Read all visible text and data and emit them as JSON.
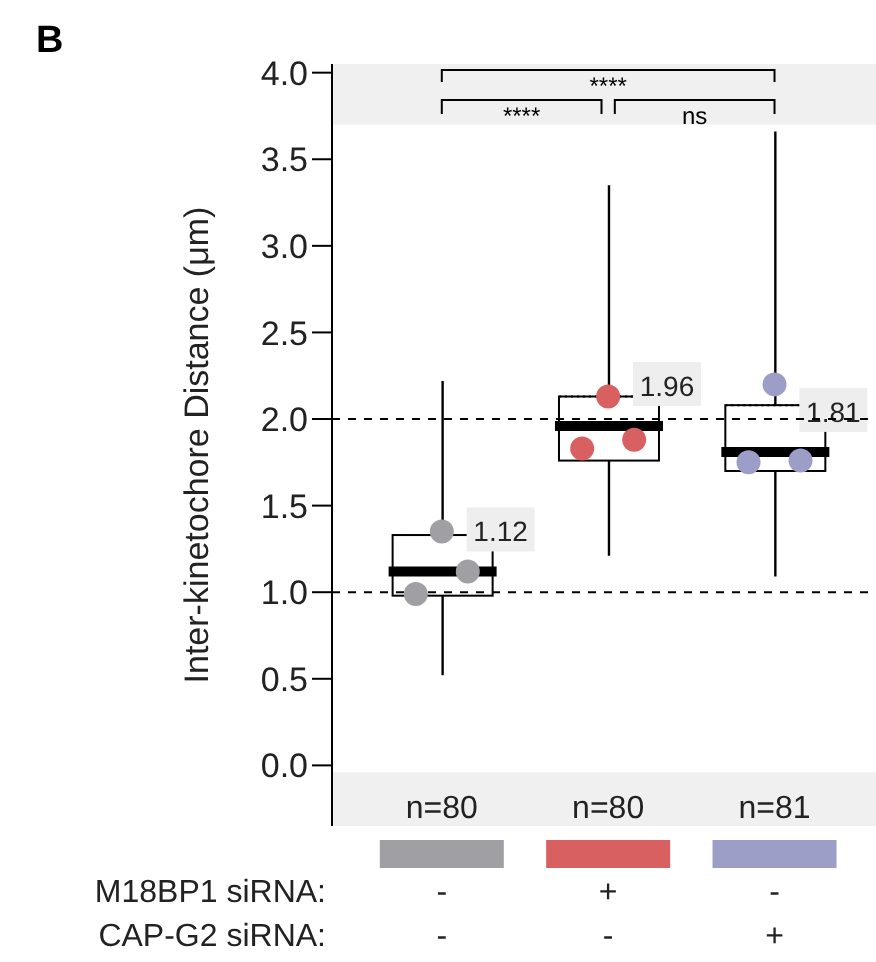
{
  "chart_data": {
    "type": "box",
    "title": "B",
    "ylabel": "Inter-kinetochore Distance (μm)",
    "categories": [
      null,
      null,
      null
    ],
    "boxes": [
      {
        "low": 0.52,
        "q1": 0.98,
        "median": 1.12,
        "q3": 1.33,
        "high": 2.22
      },
      {
        "low": 1.21,
        "q1": 1.76,
        "median": 1.96,
        "q3": 2.13,
        "high": 3.35
      },
      {
        "low": 1.09,
        "q1": 1.7,
        "median": 1.81,
        "q3": 2.08,
        "high": 3.66
      }
    ],
    "value_labels": [
      "1.12",
      "1.96",
      "1.81"
    ],
    "series": [
      {
        "type": "scatter",
        "colors": [
          "#a0a0a4",
          "#d96060",
          "#9c9ec8"
        ],
        "values": [
          1.35,
          2.13,
          2.2
        ]
      },
      {
        "type": "scatter",
        "colors": [
          "#a0a0a4",
          "#d96060",
          "#9c9ec8"
        ],
        "values": [
          1.12,
          1.88,
          1.76
        ]
      },
      {
        "type": "scatter",
        "colors": [
          "#a0a0a4",
          "#d96060",
          "#9c9ec8"
        ],
        "values": [
          0.99,
          1.83,
          1.75
        ]
      }
    ],
    "ylim": [
      -0.35,
      4.05
    ],
    "yticks": [
      {
        "value": 0,
        "label": "0.0"
      },
      0.5,
      {
        "value": 1,
        "label": "1.0"
      },
      1.5,
      {
        "value": 2,
        "label": "2.0"
      },
      2.5,
      {
        "value": 3,
        "label": "3.0"
      },
      3.5,
      {
        "value": 4,
        "label": "4.0"
      }
    ],
    "ref_lines": [
      {
        "axis": "y",
        "value": 1,
        "color": "#000000",
        "line_style": "dashed"
      },
      {
        "axis": "y",
        "value": 2,
        "color": "#000000",
        "line_style": "dashed"
      }
    ],
    "annotations": [
      "****",
      "****",
      "ns",
      "n=80",
      "n=80",
      "n=81",
      "M18BP1 siRNA:",
      "-",
      "+",
      "-",
      "CAP-G2 siRNA:",
      "-",
      "-",
      "+"
    ]
  }
}
